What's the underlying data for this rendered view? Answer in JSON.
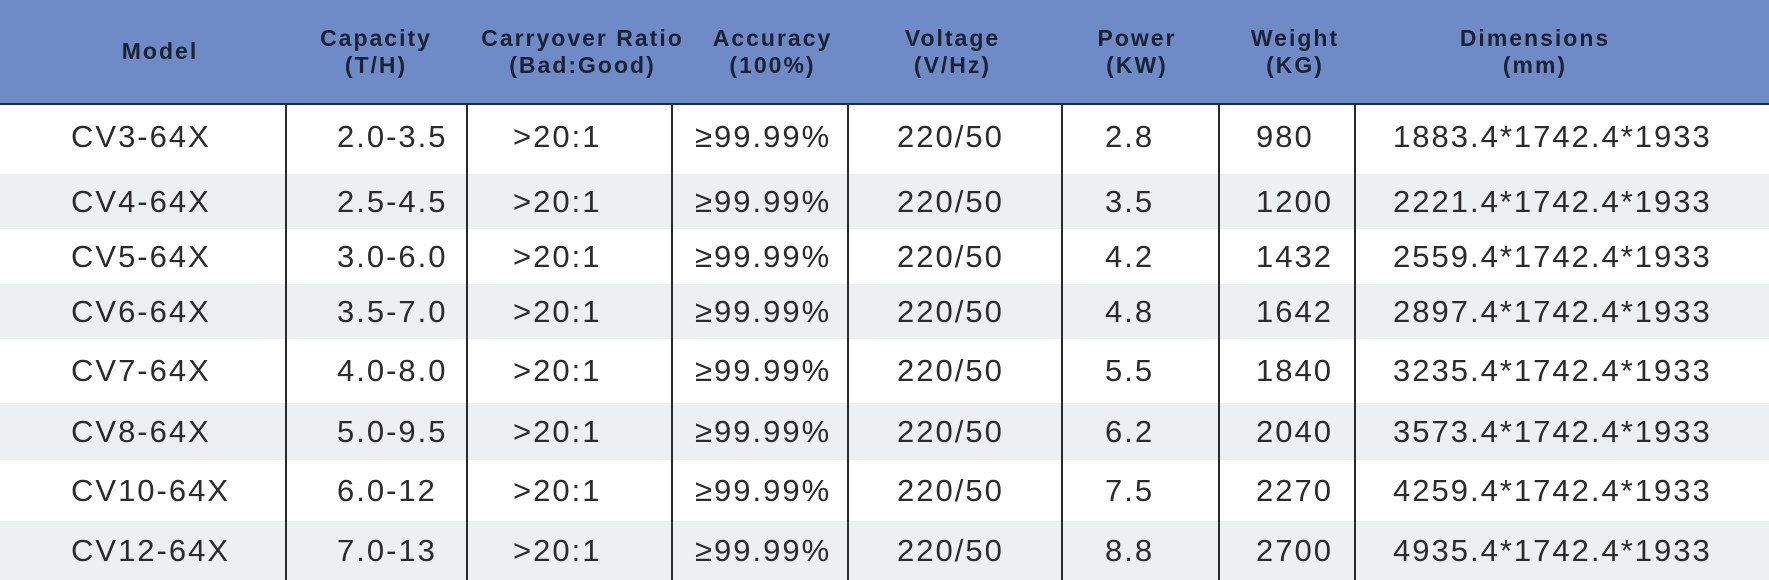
{
  "table": {
    "headers": [
      {
        "line1": "Model",
        "line2": ""
      },
      {
        "line1": "Capacity",
        "line2": "(T/H)"
      },
      {
        "line1": "Carryover Ratio",
        "line2": "(Bad:Good)"
      },
      {
        "line1": "Accuracy",
        "line2": "(100%)"
      },
      {
        "line1": "Voltage",
        "line2": "(V/Hz)"
      },
      {
        "line1": "Power",
        "line2": "(KW)"
      },
      {
        "line1": "Weight",
        "line2": "(KG)"
      },
      {
        "line1": "Dimensions",
        "line2": "(mm)"
      }
    ],
    "rows": [
      [
        "CV3-64X",
        "2.0-3.5",
        ">20:1",
        "≥99.99%",
        "220/50",
        "2.8",
        "980",
        "1883.4*1742.4*1933"
      ],
      [
        "CV4-64X",
        "2.5-4.5",
        ">20:1",
        "≥99.99%",
        "220/50",
        "3.5",
        "1200",
        "2221.4*1742.4*1933"
      ],
      [
        "CV5-64X",
        "3.0-6.0",
        ">20:1",
        "≥99.99%",
        "220/50",
        "4.2",
        "1432",
        "2559.4*1742.4*1933"
      ],
      [
        "CV6-64X",
        "3.5-7.0",
        ">20:1",
        "≥99.99%",
        "220/50",
        "4.8",
        "1642",
        "2897.4*1742.4*1933"
      ],
      [
        "CV7-64X",
        "4.0-8.0",
        ">20:1",
        "≥99.99%",
        "220/50",
        "5.5",
        "1840",
        "3235.4*1742.4*1933"
      ],
      [
        "CV8-64X",
        "5.0-9.5",
        ">20:1",
        "≥99.99%",
        "220/50",
        "6.2",
        "2040",
        "3573.4*1742.4*1933"
      ],
      [
        "CV10-64X",
        "6.0-12",
        ">20:1",
        "≥99.99%",
        "220/50",
        "7.5",
        "2270",
        "4259.4*1742.4*1933"
      ],
      [
        "CV12-64X",
        "7.0-13",
        ">20:1",
        "≥99.99%",
        "220/50",
        "8.8",
        "2700",
        "4935.4*1742.4*1933"
      ]
    ]
  }
}
